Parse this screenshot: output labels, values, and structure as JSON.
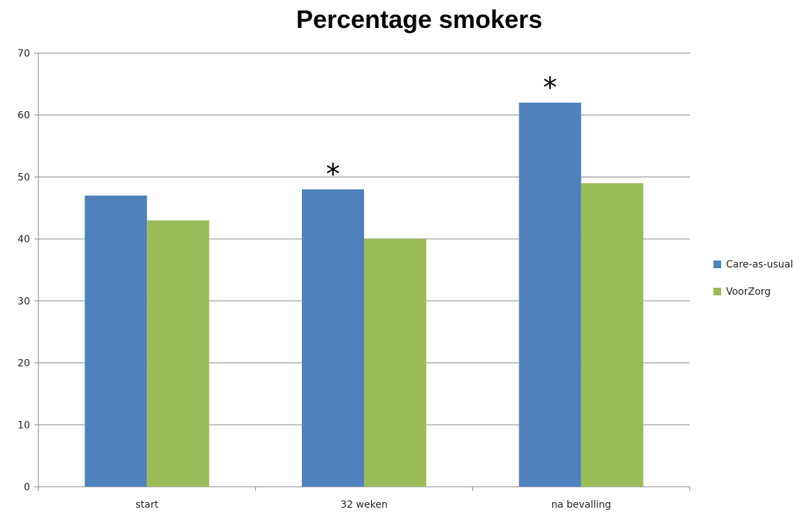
{
  "chart_data": {
    "type": "bar",
    "title": "Percentage smokers",
    "xlabel": "",
    "ylabel": "",
    "categories": [
      "start",
      "32 weken",
      "na bevalling"
    ],
    "series": [
      {
        "name": "Care-as-usual",
        "values": [
          47,
          48,
          62
        ],
        "color": "#4f81bd"
      },
      {
        "name": "VoorZorg",
        "values": [
          43,
          40,
          49
        ],
        "color": "#9bbb59"
      }
    ],
    "ylim": [
      0,
      70
    ],
    "yticks": [
      0,
      10,
      20,
      30,
      40,
      50,
      60,
      70
    ],
    "grid": true,
    "legend": "right",
    "annotations": [
      {
        "text": "*",
        "category": "32 weken",
        "series": "Care-as-usual"
      },
      {
        "text": "*",
        "category": "na bevalling",
        "series": "Care-as-usual"
      }
    ]
  }
}
